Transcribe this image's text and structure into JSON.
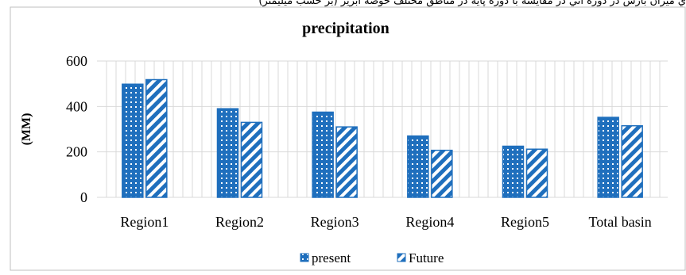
{
  "header_text": "ي ميزان بارش در دوره آتي در مقايسه با دوره پايه در مناطق مختلف حوضه آبريز (بر حسب ميليمتر)",
  "colors": {
    "bar_blue": "#1f6fbd",
    "grid": "#d9d9d9",
    "frame": "#bfbfbf"
  },
  "chart_data": {
    "type": "bar",
    "title": "precipitation",
    "xlabel": "",
    "ylabel": "(MM)",
    "ylim": [
      0,
      600
    ],
    "yticks": [
      0,
      200,
      400,
      600
    ],
    "grid": "vertical and horizontal",
    "legend_position": "bottom",
    "categories": [
      "Region1",
      "Region2",
      "Region3",
      "Region4",
      "Region5",
      "Total basin"
    ],
    "series": [
      {
        "name": "present",
        "pattern": "dotted",
        "values": [
          498,
          390,
          375,
          270,
          225,
          352
        ]
      },
      {
        "name": "Future",
        "pattern": "diagonal-stripes",
        "values": [
          518,
          330,
          310,
          207,
          212,
          315
        ]
      }
    ]
  }
}
